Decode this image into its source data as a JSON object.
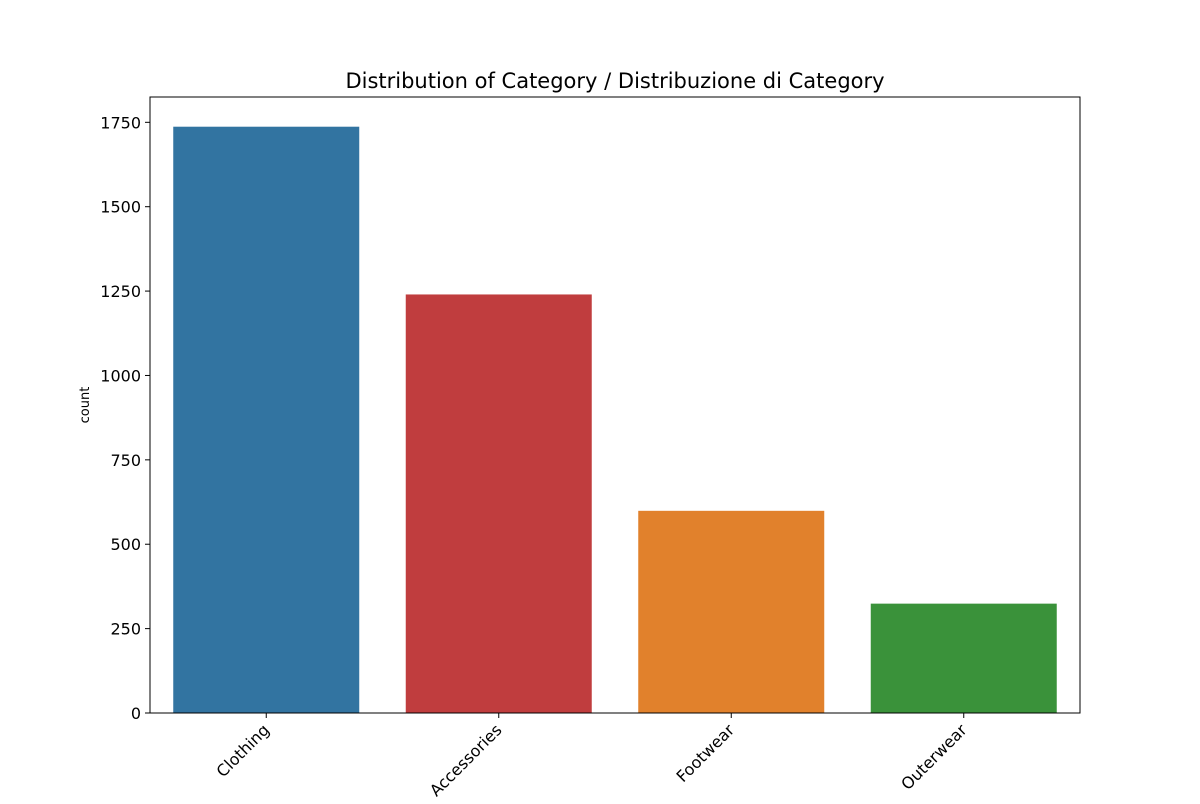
{
  "chart_data": {
    "type": "bar",
    "title": "Distribution of Category / Distribuzione di Category",
    "xlabel": "",
    "ylabel": "count",
    "categories": [
      "Clothing",
      "Accessories",
      "Footwear",
      "Outerwear"
    ],
    "values": [
      1737,
      1240,
      599,
      324
    ],
    "colors": [
      "#3274a1",
      "#c03d3e",
      "#e1812c",
      "#3a923a"
    ],
    "ylim": [
      0,
      1825
    ],
    "yticks": [
      0,
      250,
      500,
      750,
      1000,
      1250,
      1500,
      1750
    ],
    "xtick_rotation_deg": 45,
    "grid": false,
    "legend": "none"
  }
}
